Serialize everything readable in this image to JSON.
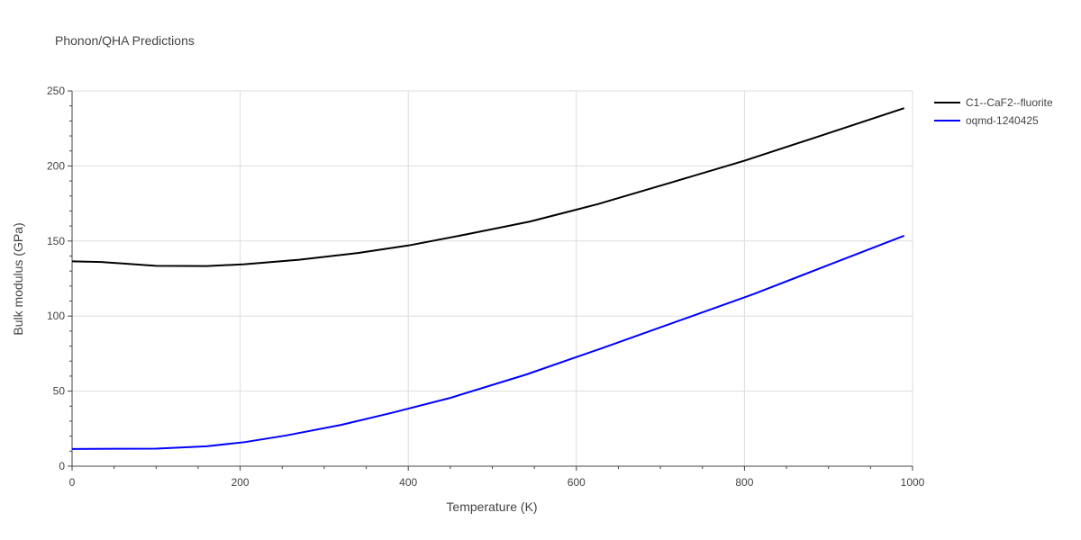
{
  "chart_data": {
    "type": "line",
    "title": "Phonon/QHA Predictions",
    "xlabel": "Temperature (K)",
    "ylabel": "Bulk modulus (GPa)",
    "xlim": [
      0,
      1000
    ],
    "ylim": [
      0,
      250
    ],
    "xticks": [
      0,
      200,
      400,
      600,
      800,
      1000
    ],
    "yticks": [
      0,
      50,
      100,
      150,
      200,
      250
    ],
    "xtick_labels": [
      "0",
      "200",
      "400",
      "600",
      "800",
      "1000"
    ],
    "ytick_labels": [
      "0",
      "50",
      "100",
      "150",
      "200",
      "250"
    ],
    "grid": true,
    "legend_position": "top-right outside",
    "series": [
      {
        "name": "C1--CaF2--fluorite",
        "color": "#000000",
        "x": [
          0,
          35,
          100,
          160,
          205,
          270,
          340,
          400,
          470,
          545,
          625,
          710,
          800,
          890,
          990
        ],
        "y": [
          136.5,
          136,
          133.5,
          133.3,
          134.5,
          137.5,
          142,
          147,
          154.5,
          163,
          174.5,
          188.5,
          203.5,
          220,
          238.5
        ]
      },
      {
        "name": "oqmd-1240425",
        "color": "#0000ff",
        "x": [
          0,
          50,
          100,
          160,
          205,
          255,
          320,
          380,
          450,
          540,
          630,
          720,
          810,
          900,
          990
        ],
        "y": [
          11.5,
          11.6,
          11.7,
          13.3,
          16,
          20.5,
          27.5,
          35.5,
          45.5,
          61,
          78.5,
          96.5,
          114.5,
          134,
          153.5
        ]
      }
    ]
  }
}
